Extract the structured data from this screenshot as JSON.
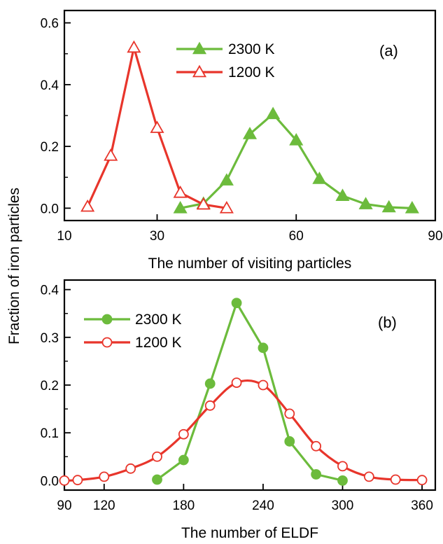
{
  "shared_ylabel": "Fraction of iron particles",
  "chart_data": [
    {
      "type": "line",
      "panel_label": "(a)",
      "xlabel": "The number of visiting particles",
      "ylabel": "",
      "xlim": [
        10,
        90
      ],
      "ylim": [
        -0.04,
        0.64
      ],
      "x_ticks": [
        10,
        30,
        60,
        90
      ],
      "y_ticks": [
        0.0,
        0.2,
        0.4,
        0.6
      ],
      "legend_position": "top-center",
      "grid": false,
      "series": [
        {
          "name": "2300 K",
          "color": "#6cbb3c",
          "marker": "filled-triangle",
          "x": [
            35,
            40,
            45,
            50,
            55,
            60,
            65,
            70,
            75,
            80,
            85
          ],
          "y": [
            0.0,
            0.015,
            0.09,
            0.24,
            0.305,
            0.22,
            0.095,
            0.04,
            0.013,
            0.003,
            0.0
          ]
        },
        {
          "name": "1200 K",
          "color": "#e8352b",
          "marker": "open-triangle",
          "x": [
            15,
            20,
            25,
            30,
            35,
            40,
            45
          ],
          "y": [
            0.005,
            0.17,
            0.52,
            0.26,
            0.05,
            0.012,
            0.0
          ]
        }
      ]
    },
    {
      "type": "line",
      "panel_label": "(b)",
      "xlabel": "The number of ELDF",
      "ylabel": "",
      "xlim": [
        90,
        370
      ],
      "ylim": [
        -0.02,
        0.42
      ],
      "x_ticks": [
        90,
        120,
        180,
        240,
        300,
        360
      ],
      "y_ticks": [
        0.0,
        0.1,
        0.2,
        0.3,
        0.4
      ],
      "legend_position": "top-left",
      "grid": false,
      "series": [
        {
          "name": "2300 K",
          "color": "#6cbb3c",
          "marker": "filled-circle",
          "smooth": false,
          "x": [
            160,
            180,
            200,
            220,
            240,
            260,
            280,
            300
          ],
          "y": [
            0.002,
            0.043,
            0.203,
            0.372,
            0.278,
            0.082,
            0.013,
            0.0
          ]
        },
        {
          "name": "1200 K",
          "color": "#e8352b",
          "marker": "open-circle",
          "smooth": true,
          "x": [
            90,
            100,
            120,
            140,
            160,
            180,
            200,
            220,
            240,
            260,
            280,
            300,
            320,
            340,
            360
          ],
          "y": [
            0.0,
            0.001,
            0.008,
            0.025,
            0.05,
            0.097,
            0.157,
            0.205,
            0.2,
            0.14,
            0.072,
            0.03,
            0.008,
            0.002,
            0.001
          ]
        }
      ]
    }
  ]
}
